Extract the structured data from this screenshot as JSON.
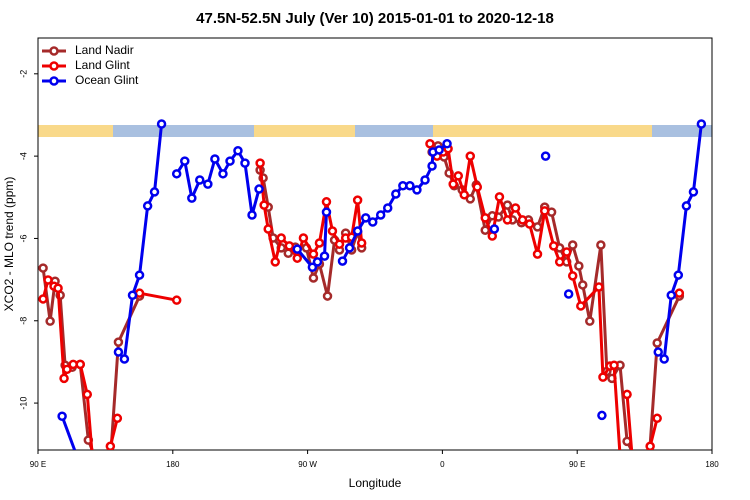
{
  "chart_data": {
    "type": "line",
    "title": "47.5N-52.5N July (Ver 10)   2015-01-01 to 2020-12-18",
    "x_label": "Longitude",
    "y_label": "XCO2 - MLO trend (ppm)",
    "xlim": [
      90,
      540
    ],
    "ylim": [
      -11.14,
      -1.13
    ],
    "xticks": [
      {
        "value": 90,
        "label": "90 E"
      },
      180,
      {
        "value": 270,
        "label": "90 W"
      },
      {
        "value": 360,
        "label": "0"
      },
      {
        "value": 450,
        "label": "90 E"
      },
      {
        "value": 540,
        "label": "180"
      }
    ],
    "yticks": [
      -2,
      -4,
      -6,
      -8,
      -10
    ],
    "legend": "topleft",
    "series": [
      {
        "name": "Land Nadir",
        "color": "#a52a2a",
        "x": [
          93.4,
          98.1,
          101.4,
          104.8,
          108.1,
          112.8,
          118.2,
          123.6,
          127.6,
          null,
          138.3,
          143.7,
          157.8,
          null,
          238.3,
          240.3,
          243.7,
          247.0,
          252.4,
          257.1,
          261.8,
          269.2,
          273.9,
          277.9,
          283.3,
          288.0,
          291.3,
          295.4,
          299.4,
          303.4,
          306.1,
          null,
          353.1,
          357.1,
          361.1,
          364.5,
          367.9,
          373.2,
          378.6,
          382.6,
          388.6,
          393.3,
          397.4,
          403.4,
          406.8,
          412.8,
          417.5,
          423.5,
          428.3,
          432.9,
          438.3,
          443.0,
          447.0,
          451.1,
          453.7,
          458.4,
          465.8,
          469.8,
          473.2,
          478.6,
          483.3,
          488.0,
          null,
          498.0,
          503.4,
          518.2
        ],
        "values": [
          -6.72,
          -8.01,
          -7.04,
          -7.38,
          -9.08,
          -9.13,
          -9.06,
          -10.9,
          -11.27,
          null,
          -11.39,
          -8.52,
          -7.4,
          null,
          -4.34,
          -4.53,
          -5.24,
          -5.99,
          -6.23,
          -6.36,
          -6.21,
          -6.23,
          -6.96,
          -6.62,
          -7.4,
          -6.04,
          -6.28,
          -5.87,
          -6.28,
          -5.84,
          -6.23,
          null,
          -3.9,
          -3.75,
          -4.02,
          -4.41,
          -4.72,
          -4.82,
          -5.04,
          -4.7,
          -5.8,
          -5.45,
          -5.48,
          -5.19,
          -5.55,
          -5.62,
          -5.55,
          -5.72,
          -5.24,
          -5.36,
          -6.23,
          -6.57,
          -6.16,
          -6.67,
          -7.13,
          -8.01,
          -6.16,
          -9.23,
          -9.4,
          -9.08,
          -10.93,
          -11.27,
          null,
          -11.39,
          -8.54,
          -7.4
        ]
      },
      {
        "name": "Land Glint",
        "color": "#ee0000",
        "x": [
          93.4,
          96.7,
          100.7,
          103.4,
          107.4,
          109.4,
          113.5,
          118.2,
          122.9,
          126.2,
          null,
          138.3,
          143.0,
          null,
          157.8,
          182.6,
          null,
          238.3,
          241.0,
          243.7,
          248.4,
          252.4,
          257.8,
          263.1,
          267.2,
          273.9,
          277.9,
          282.6,
          286.6,
          291.3,
          295.4,
          299.4,
          303.4,
          306.1,
          null,
          351.7,
          356.4,
          360.5,
          363.8,
          367.2,
          370.6,
          374.6,
          378.6,
          383.3,
          388.6,
          393.3,
          398.1,
          403.4,
          408.8,
          413.5,
          418.2,
          423.5,
          428.3,
          434.3,
          438.3,
          443.0,
          447.0,
          452.4,
          464.5,
          467.2,
          471.9,
          474.6,
          478.6,
          null,
          483.3,
          486.6,
          null,
          498.7,
          503.4,
          null,
          518.2
        ],
        "values": [
          -7.47,
          -7.01,
          -7.16,
          -7.21,
          -9.4,
          -9.18,
          -9.06,
          -9.06,
          -9.79,
          -11.27,
          null,
          -11.05,
          -10.37,
          null,
          -7.33,
          -7.5,
          null,
          -4.17,
          -5.19,
          -5.77,
          -6.57,
          -5.99,
          -6.18,
          -6.48,
          -5.99,
          -6.38,
          -6.11,
          -5.11,
          -5.82,
          -6.14,
          -5.99,
          -5.97,
          -5.07,
          -6.11,
          null,
          -3.7,
          -4.0,
          -3.9,
          -3.82,
          -4.68,
          -4.48,
          -4.94,
          -4.0,
          -4.75,
          -5.5,
          -5.94,
          -4.99,
          -5.55,
          -5.26,
          -5.55,
          -5.65,
          -6.38,
          -5.33,
          -6.18,
          -6.57,
          -6.33,
          -6.91,
          -7.64,
          -7.18,
          -9.37,
          -9.1,
          -9.08,
          -11.27,
          null,
          -9.79,
          -11.27,
          null,
          -11.05,
          -10.37,
          null,
          -7.33
        ]
      },
      {
        "name": "Ocean Glint",
        "color": "#0000ee",
        "x": [
          106.1,
          118.2,
          null,
          143.7,
          147.7,
          153.1,
          157.8,
          163.2,
          167.8,
          172.5,
          null,
          182.6,
          188.0,
          192.7,
          198.0,
          203.4,
          208.1,
          213.5,
          218.2,
          223.5,
          228.2,
          232.9,
          237.6,
          null,
          263.1,
          273.2,
          276.6,
          281.3,
          282.6,
          null,
          293.3,
          298.0,
          303.4,
          308.8,
          313.5,
          318.8,
          323.5,
          328.9,
          333.6,
          338.3,
          343.0,
          348.4,
          353.1,
          353.7,
          357.8,
          363.1,
          null,
          394.7,
          null,
          428.9,
          null,
          444.3,
          null,
          466.5,
          null,
          504.1,
          508.1,
          512.8,
          517.5,
          522.9,
          527.6,
          532.9
        ],
        "values": [
          -10.32,
          -11.51,
          null,
          -8.76,
          -8.93,
          -7.38,
          -6.89,
          -5.21,
          -4.87,
          -3.22,
          null,
          -4.43,
          -4.12,
          -5.02,
          -4.58,
          -4.68,
          -4.07,
          -4.43,
          -4.12,
          -3.87,
          -4.17,
          -5.43,
          -4.8,
          null,
          -6.26,
          -6.7,
          -6.57,
          -6.43,
          -5.36,
          null,
          -6.55,
          -6.23,
          -5.82,
          -5.5,
          -5.6,
          -5.43,
          -5.26,
          -4.92,
          -4.72,
          -4.72,
          -4.82,
          -4.58,
          -4.24,
          -3.9,
          -3.85,
          -3.7,
          null,
          -5.77,
          null,
          -4.0,
          null,
          -7.35,
          null,
          -10.3,
          null,
          -8.76,
          -8.93,
          -7.38,
          -6.89,
          -5.21,
          -4.87,
          -3.22
        ]
      }
    ]
  }
}
